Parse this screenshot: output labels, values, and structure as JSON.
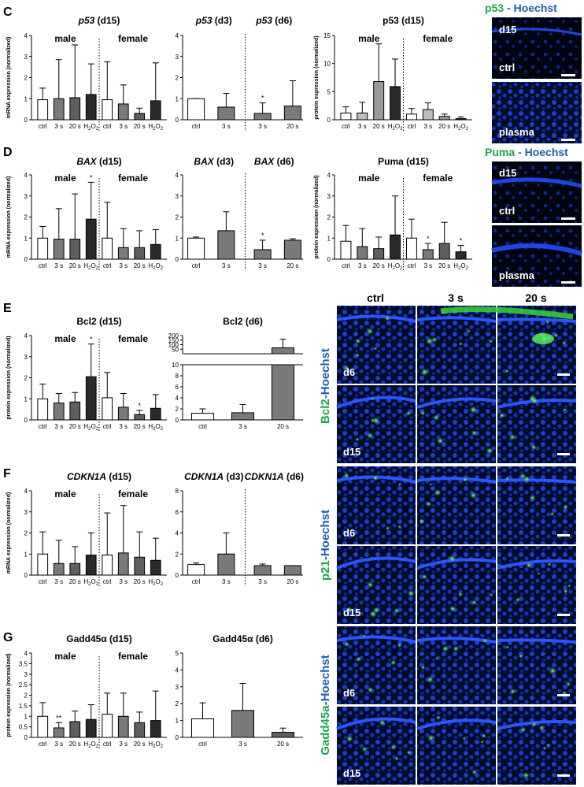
{
  "colors": {
    "ctrl": "#ffffff",
    "s3": "#7a7a7a",
    "s20": "#5e5e5e",
    "h2o2": "#2a2a2a",
    "s3_light": "#bdbdbd",
    "s20_light": "#9a9a9a",
    "green": "#1aa64b",
    "blue": "#1f5ea8",
    "tissue_bg": "#000814",
    "tissue_blue": "#1638c8"
  },
  "panels": [
    {
      "letter": "C",
      "charts": [
        {
          "id": "C1",
          "title_gene": "p53",
          "title_rest": " (d15)",
          "ylabel": "mRNA expression (normalized)",
          "yticks": [
            "0",
            "1",
            "2",
            "3",
            "4"
          ],
          "ymax": 4,
          "groups": [
            "male",
            "female"
          ],
          "categories": [
            "ctrl",
            "3 s",
            "20 s",
            "H2O2",
            "ctrl",
            "3 s",
            "20 s",
            "H2O2"
          ],
          "values": [
            0.95,
            1.0,
            1.05,
            1.2,
            0.95,
            0.75,
            0.3,
            0.9
          ],
          "errors": [
            1.5,
            2.85,
            3.55,
            2.65,
            2.75,
            1.65,
            0.55,
            2.7
          ],
          "stars": [
            "",
            "",
            "",
            "",
            "",
            "",
            "",
            ""
          ]
        },
        {
          "id": "C2",
          "title_left_gene": "p53",
          "title_left_rest": " (d3)",
          "title_right_gene": "p53",
          "title_right_rest": " (d6)",
          "yticks": [
            "0",
            "1",
            "2",
            "3",
            "4"
          ],
          "ymax": 4,
          "categories": [
            "ctrl",
            "3 s",
            "3 s",
            "20 s"
          ],
          "values": [
            1.0,
            0.6,
            0.3,
            0.65
          ],
          "errors": [
            1.0,
            1.25,
            0.8,
            1.85
          ],
          "stars": [
            "",
            "",
            "*",
            ""
          ]
        },
        {
          "id": "C3",
          "title": "p53 (d15)",
          "ylabel": "protein expression (normalized)",
          "yticks": [
            "0",
            "5",
            "10",
            "15"
          ],
          "ymax": 15,
          "groups": [
            "male",
            "female"
          ],
          "categories": [
            "ctrl",
            "3 s",
            "20 s",
            "H2O2",
            "ctrl",
            "3 s",
            "20 s",
            "H2O2"
          ],
          "values": [
            1.2,
            1.2,
            6.8,
            5.9,
            1.0,
            1.8,
            0.6,
            0.2
          ],
          "errors": [
            2.3,
            3.1,
            13.5,
            10.8,
            2.0,
            3.0,
            1.0,
            0.5
          ],
          "stars": [
            "",
            "",
            "",
            "",
            "",
            "",
            "",
            ""
          ]
        }
      ],
      "image": {
        "title_a": "p53",
        "title_sep": " - ",
        "title_b": "Hoechst",
        "label_top": "d15",
        "label_mid": "ctrl",
        "label_bottom": "plasma"
      }
    },
    {
      "letter": "D",
      "charts": [
        {
          "id": "D1",
          "title_gene": "BAX",
          "title_rest": " (d15)",
          "ylabel": "mRNA expression (normalized)",
          "yticks": [
            "0",
            "1",
            "2",
            "3",
            "4"
          ],
          "ymax": 4,
          "groups": [
            "male",
            "female"
          ],
          "categories": [
            "ctrl",
            "3 s",
            "20 s",
            "H2O2",
            "ctrl",
            "3 s",
            "20 s",
            "H2O2"
          ],
          "values": [
            1.0,
            0.95,
            0.95,
            1.9,
            1.0,
            0.55,
            0.55,
            0.7
          ],
          "errors": [
            1.55,
            2.4,
            3.1,
            3.65,
            2.7,
            1.45,
            1.35,
            1.4
          ],
          "stars": [
            "",
            "",
            "",
            "*",
            "",
            "",
            "",
            ""
          ]
        },
        {
          "id": "D2",
          "title_left_gene": "BAX",
          "title_left_rest": " (d3)",
          "title_right_gene": "BAX",
          "title_right_rest": " (d6)",
          "yticks": [
            "0",
            "1",
            "2",
            "3",
            "4"
          ],
          "ymax": 4,
          "categories": [
            "ctrl",
            "3 s",
            "3 s",
            "20 s"
          ],
          "values": [
            1.0,
            1.35,
            0.45,
            0.9
          ],
          "errors": [
            1.05,
            2.25,
            0.9,
            0.97
          ],
          "stars": [
            "",
            "",
            "*",
            ""
          ]
        },
        {
          "id": "D3",
          "title": "Puma (d15)",
          "ylabel": "protein expression (normalized)",
          "yticks": [
            "0",
            "1",
            "2",
            "3",
            "4"
          ],
          "ymax": 4,
          "groups": [
            "male",
            "female"
          ],
          "categories": [
            "ctrl",
            "3 s",
            "20 s",
            "H2O2",
            "ctrl",
            "3 s",
            "20 s",
            "H2O2"
          ],
          "values": [
            0.85,
            0.6,
            0.5,
            1.15,
            1.0,
            0.45,
            0.75,
            0.35
          ],
          "errors": [
            1.6,
            1.45,
            1.05,
            3.0,
            1.9,
            0.75,
            1.75,
            0.65
          ],
          "stars": [
            "",
            "",
            "",
            "",
            "",
            "*",
            "",
            "*"
          ]
        }
      ],
      "image": {
        "title_a": "Puma",
        "title_sep": " - ",
        "title_b": "Hoechst",
        "label_top": "d15",
        "label_mid": "ctrl",
        "label_bottom": "plasma"
      }
    },
    {
      "letter": "E",
      "charts": [
        {
          "id": "E1",
          "title": "Bcl2 (d15)",
          "ylabel": "protein expression (normalized)",
          "yticks": [
            "0",
            "1",
            "2",
            "3",
            "4"
          ],
          "ymax": 4,
          "groups": [
            "male",
            "female"
          ],
          "categories": [
            "ctrl",
            "3 s",
            "20 s",
            "H2O2",
            "ctrl",
            "3 s",
            "20 s",
            "H2O2"
          ],
          "values": [
            1.0,
            0.8,
            0.85,
            2.05,
            1.05,
            0.6,
            0.25,
            0.55
          ],
          "errors": [
            1.7,
            1.25,
            1.3,
            3.6,
            2.25,
            1.25,
            0.45,
            1.2
          ],
          "stars": [
            "",
            "",
            "",
            "*",
            "",
            "",
            "*",
            ""
          ]
        },
        {
          "id": "E2",
          "title": "Bcl2 (d6)",
          "yticks_low": [
            "0",
            "2",
            "4",
            "6",
            "8",
            "10"
          ],
          "yticks_high": [
            "50",
            "100",
            "150",
            "200"
          ],
          "categories": [
            "ctrl",
            "3 s",
            "20 s"
          ],
          "values": [
            1.2,
            1.3,
            65
          ],
          "errors": [
            2.0,
            2.8,
            160
          ],
          "stars": [
            "",
            "",
            ""
          ]
        }
      ],
      "image": {
        "columns": [
          "ctrl",
          "3 s",
          "20 s"
        ],
        "stain_a": "Bcl2",
        "stain_b": "-Hoechst",
        "row_labels": [
          "d6",
          "d15"
        ]
      }
    },
    {
      "letter": "F",
      "charts": [
        {
          "id": "F1",
          "title_gene": "CDKN1A",
          "title_rest": " (d15)",
          "ylabel": "mRNA expression (normalized)",
          "yticks": [
            "0",
            "1",
            "2",
            "3",
            "4"
          ],
          "ymax": 4,
          "groups": [
            "male",
            "female"
          ],
          "categories": [
            "ctrl",
            "3 s",
            "20 s",
            "H2O2",
            "ctrl",
            "3 s",
            "20 s",
            "H2O2"
          ],
          "values": [
            1.0,
            0.55,
            0.55,
            0.95,
            0.95,
            1.05,
            0.85,
            0.7
          ],
          "errors": [
            2.05,
            1.65,
            1.35,
            2.0,
            2.95,
            3.3,
            2.05,
            1.75
          ],
          "stars": [
            "",
            "",
            "",
            "",
            "",
            "",
            "",
            ""
          ]
        },
        {
          "id": "F2",
          "title_left_gene": "CDKN1A",
          "title_left_rest": " (d3)",
          "title_right_gene": "CDKN1A",
          "title_right_rest": " (d6)",
          "yticks": [
            "0",
            "2",
            "4",
            "6",
            "8"
          ],
          "ymax": 8,
          "categories": [
            "ctrl",
            "3 s",
            "3 s",
            "20 s"
          ],
          "values": [
            1.0,
            2.0,
            0.9,
            0.9
          ],
          "errors": [
            1.15,
            4.0,
            1.05,
            0.9
          ],
          "stars": [
            "",
            "",
            "",
            ""
          ]
        }
      ],
      "image": {
        "stain_a": "p21",
        "stain_b": "-Hoechst",
        "row_labels": [
          "d6",
          "d15"
        ]
      }
    },
    {
      "letter": "G",
      "charts": [
        {
          "id": "G1",
          "title": "Gadd45α (d15)",
          "ylabel": "protein expression (normalized)",
          "yticks": [
            "0",
            "0.5",
            "1",
            "1.5",
            "2",
            "2.5",
            "3",
            "3.5",
            "4"
          ],
          "ymax": 4,
          "groups": [
            "male",
            "female"
          ],
          "categories": [
            "ctrl",
            "3 s",
            "20 s",
            "H2O2",
            "ctrl",
            "3 s",
            "20 s",
            "H2O2"
          ],
          "values": [
            1.0,
            0.45,
            0.75,
            0.85,
            1.1,
            1.0,
            0.7,
            0.8
          ],
          "errors": [
            1.65,
            0.7,
            1.25,
            1.55,
            2.1,
            2.1,
            1.2,
            2.2
          ],
          "stars": [
            "",
            "**",
            "",
            "",
            "",
            "",
            "",
            ""
          ]
        },
        {
          "id": "G2",
          "title": "Gadd45α (d6)",
          "yticks": [
            "0",
            "1",
            "2",
            "3",
            "4",
            "5"
          ],
          "ymax": 5,
          "categories": [
            "ctrl",
            "3 s",
            "20 s"
          ],
          "values": [
            1.1,
            1.6,
            0.3
          ],
          "errors": [
            2.05,
            3.2,
            0.55
          ],
          "stars": [
            "",
            "",
            ""
          ]
        }
      ],
      "image": {
        "stain_a": "Gadd45a",
        "stain_b": "-Hoechst",
        "row_labels": [
          "d6",
          "d15"
        ]
      }
    }
  ],
  "h2o2_main": "H",
  "h2o2_sub": "2",
  "h2o2_tail": "O"
}
